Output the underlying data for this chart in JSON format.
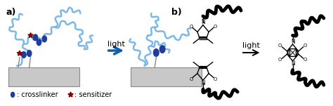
{
  "bg_color": "#ffffff",
  "polymer_blue": "#7BB8E8",
  "crosslinker_color": "#1E3E9E",
  "sensitizer_color": "#8B0000",
  "arrow_color": "#1060B0",
  "gray_box": "#C8C8C8",
  "gray_box_border": "#888888",
  "label_a": "a)",
  "label_b": "b)",
  "light_text": "light",
  "crosslinker_label": ": crosslinker",
  "sensitizer_label": ": sensitizer",
  "fig_width": 4.74,
  "fig_height": 1.51
}
